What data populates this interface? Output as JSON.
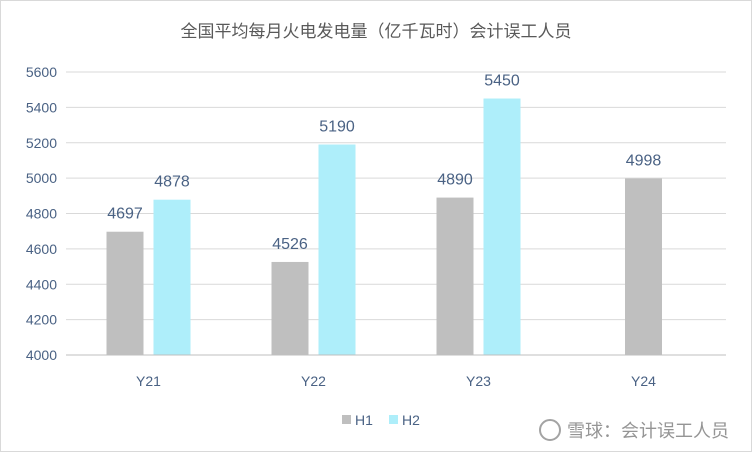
{
  "chart_data": {
    "type": "bar",
    "title": "全国平均每月火电发电量（亿千瓦时）会计误工人员",
    "categories": [
      "Y21",
      "Y22",
      "Y23",
      "Y24"
    ],
    "series": [
      {
        "name": "H1",
        "values": [
          4697,
          4526,
          4890,
          4998
        ],
        "color": "#bfbfbf"
      },
      {
        "name": "H2",
        "values": [
          4878,
          5190,
          5450,
          null
        ],
        "color": "#aeeefa"
      }
    ],
    "ylim": [
      4000,
      5600
    ],
    "yticks": [
      "4000",
      "4200",
      "4400",
      "4600",
      "4800",
      "5000",
      "5200",
      "5400",
      "5600"
    ],
    "grid": true,
    "legend_position": "bottom"
  },
  "watermark": "雪球：会计误工人员"
}
